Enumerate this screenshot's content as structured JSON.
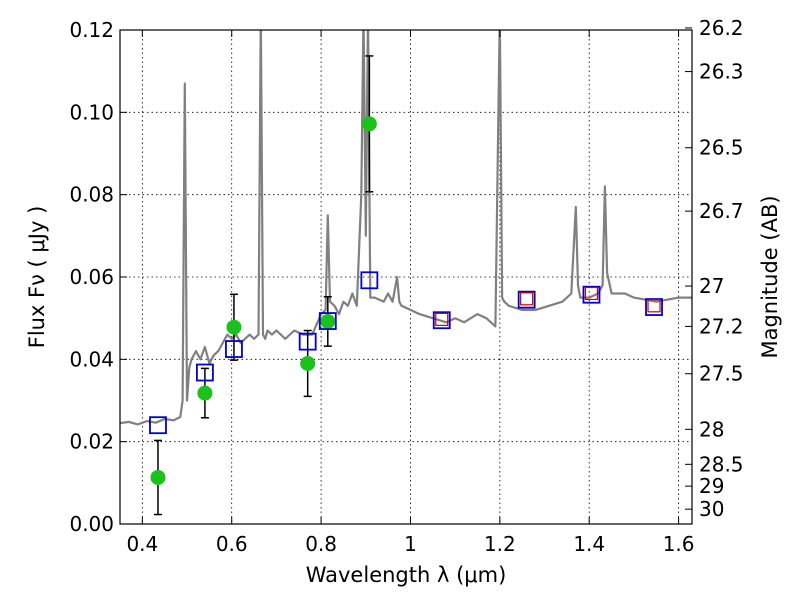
{
  "chart_data": {
    "type": "scatter",
    "xlabel": "Wavelength  λ (μm)",
    "ylabel": "Flux  Fν  ( μJy )",
    "ylabel_right": "Magnitude (AB)",
    "xlim": [
      0.35,
      1.63
    ],
    "ylim": [
      0.0,
      0.12
    ],
    "grid": true,
    "x_ticks": [
      0.4,
      0.6,
      0.8,
      1.0,
      1.2,
      1.4,
      1.6
    ],
    "x_tick_labels": [
      "0.4",
      "0.6",
      "0.8",
      "1",
      "1.2",
      "1.4",
      "1.6"
    ],
    "y_ticks": [
      0.0,
      0.02,
      0.04,
      0.06,
      0.08,
      0.1,
      0.12
    ],
    "y_tick_labels": [
      "0.00",
      "0.02",
      "0.04",
      "0.06",
      "0.08",
      "0.10",
      "0.12"
    ],
    "right_axis": {
      "ticks": [
        {
          "label": "26.2",
          "flux": 0.1205
        },
        {
          "label": "26.3",
          "flux": 0.1099
        },
        {
          "label": "26.5",
          "flux": 0.0914
        },
        {
          "label": "26.7",
          "flux": 0.076
        },
        {
          "label": "27",
          "flux": 0.0578
        },
        {
          "label": "27.2",
          "flux": 0.048
        },
        {
          "label": "27.5",
          "flux": 0.0365
        },
        {
          "label": "28",
          "flux": 0.023
        },
        {
          "label": "28.5",
          "flux": 0.0145
        },
        {
          "label": "29",
          "flux": 0.0092
        },
        {
          "label": "30",
          "flux": 0.0036
        }
      ]
    },
    "series": [
      {
        "kind": "line",
        "color": "#808080",
        "x": [
          0.35,
          0.37,
          0.39,
          0.41,
          0.43,
          0.45,
          0.47,
          0.485,
          0.49,
          0.495,
          0.5,
          0.505,
          0.51,
          0.52,
          0.53,
          0.54,
          0.55,
          0.56,
          0.57,
          0.58,
          0.59,
          0.6,
          0.61,
          0.62,
          0.63,
          0.64,
          0.65,
          0.66,
          0.665,
          0.67,
          0.675,
          0.68,
          0.69,
          0.7,
          0.72,
          0.74,
          0.76,
          0.78,
          0.8,
          0.81,
          0.815,
          0.82,
          0.83,
          0.84,
          0.85,
          0.86,
          0.87,
          0.88,
          0.89,
          0.895,
          0.9,
          0.905,
          0.91,
          0.92,
          0.94,
          0.95,
          0.96,
          0.97,
          0.975,
          0.98,
          1.0,
          1.02,
          1.05,
          1.08,
          1.1,
          1.12,
          1.15,
          1.17,
          1.19,
          1.2,
          1.205,
          1.21,
          1.22,
          1.25,
          1.28,
          1.31,
          1.34,
          1.36,
          1.37,
          1.375,
          1.38,
          1.4,
          1.42,
          1.43,
          1.435,
          1.44,
          1.45,
          1.48,
          1.5,
          1.55,
          1.6,
          1.63
        ],
        "y": [
          0.0245,
          0.0248,
          0.0242,
          0.025,
          0.0246,
          0.0255,
          0.0252,
          0.026,
          0.03,
          0.107,
          0.03,
          0.038,
          0.04,
          0.042,
          0.04,
          0.043,
          0.039,
          0.041,
          0.042,
          0.044,
          0.046,
          0.045,
          0.046,
          0.044,
          0.045,
          0.046,
          0.045,
          0.046,
          0.124,
          0.046,
          0.045,
          0.047,
          0.046,
          0.047,
          0.045,
          0.047,
          0.046,
          0.046,
          0.051,
          0.052,
          0.075,
          0.054,
          0.053,
          0.051,
          0.054,
          0.053,
          0.056,
          0.053,
          0.08,
          0.124,
          0.07,
          0.124,
          0.055,
          0.055,
          0.054,
          0.056,
          0.054,
          0.06,
          0.054,
          0.053,
          0.052,
          0.051,
          0.05,
          0.049,
          0.05,
          0.049,
          0.051,
          0.05,
          0.048,
          0.124,
          0.055,
          0.054,
          0.053,
          0.052,
          0.052,
          0.053,
          0.054,
          0.056,
          0.077,
          0.058,
          0.055,
          0.055,
          0.056,
          0.058,
          0.082,
          0.061,
          0.056,
          0.056,
          0.055,
          0.054,
          0.055,
          0.055
        ]
      },
      {
        "kind": "points",
        "marker": "circle",
        "color": "#1bc21b",
        "x": [
          0.435,
          0.54,
          0.605,
          0.77,
          0.815,
          0.908
        ],
        "y": [
          0.0113,
          0.0318,
          0.0478,
          0.039,
          0.0492,
          0.0972
        ],
        "err": [
          0.009,
          0.006,
          0.008,
          0.008,
          0.006,
          0.0165
        ]
      },
      {
        "kind": "points",
        "marker": "square-open",
        "color": "#0000cc",
        "x": [
          0.435,
          0.54,
          0.605,
          0.77,
          0.815,
          0.908,
          1.07,
          1.26,
          1.405,
          1.545
        ],
        "y": [
          0.024,
          0.0368,
          0.0425,
          0.0443,
          0.0493,
          0.0592,
          0.0495,
          0.0545,
          0.0557,
          0.0527
        ]
      },
      {
        "kind": "points",
        "marker": "square-open-small",
        "color": "#cc0000",
        "x": [
          1.07,
          1.26,
          1.405,
          1.545
        ],
        "y": [
          0.0497,
          0.0547,
          0.056,
          0.053
        ]
      }
    ]
  }
}
